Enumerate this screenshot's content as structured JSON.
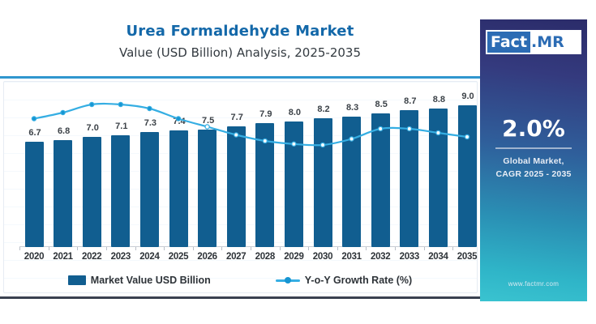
{
  "header": {
    "title": "Urea Formaldehyde Market",
    "subtitle": "Value (USD Billion) Analysis, 2025-2035"
  },
  "chart_data": {
    "type": "bar",
    "title": "Urea Formaldehyde Market",
    "subtitle": "Value (USD Billion) Analysis, 2025-2035",
    "categories": [
      "2020",
      "2021",
      "2022",
      "2023",
      "2024",
      "2025",
      "2026",
      "2027",
      "2028",
      "2029",
      "2030",
      "2031",
      "2032",
      "2033",
      "2034",
      "2035"
    ],
    "series": [
      {
        "name": "Market Value USD Billion",
        "type": "bar",
        "color": "#115E90",
        "values": [
          6.7,
          6.8,
          7.0,
          7.1,
          7.3,
          7.4,
          7.5,
          7.7,
          7.9,
          8.0,
          8.2,
          8.3,
          8.5,
          8.7,
          8.8,
          9.0
        ]
      },
      {
        "name": "Y-o-Y Growth Rate (%)",
        "type": "line",
        "color": "#35AEE3",
        "values_estimated_pct": [
          2.3,
          2.6,
          3.0,
          3.0,
          2.8,
          2.3,
          1.9,
          1.5,
          1.2,
          1.05,
          1.0,
          1.3,
          1.8,
          1.8,
          1.6,
          1.4
        ]
      }
    ],
    "value_labels_shown": true,
    "xlabel": "",
    "ylabel": "",
    "ylim": [
      0,
      9.5
    ],
    "grid": false,
    "legend_position": "bottom"
  },
  "legend": {
    "bar_label": "Market Value USD Billion",
    "line_label": "Y-o-Y Growth Rate (%)"
  },
  "sidebar": {
    "logo_part1": "Fact",
    "logo_part2": ".MR",
    "cagr_value": "2.0%",
    "cagr_caption_line1": "Global Market,",
    "cagr_caption_line2": "CAGR 2025 - 2035",
    "website": "www.factmr.com"
  },
  "colors": {
    "bar": "#115E90",
    "line": "#35AEE3",
    "title_blue": "#1368A9",
    "top_rule": "#3096CE",
    "bottom_rule": "#3A4150",
    "panel_top": "#2B2C6A",
    "panel_bottom": "#3AC3D0",
    "logo_blue": "#2C6CB4"
  }
}
